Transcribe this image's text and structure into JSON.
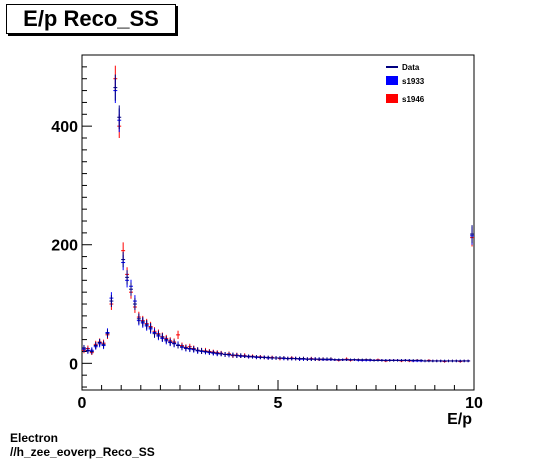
{
  "header": {
    "title": "E/p Reco_SS"
  },
  "footer": {
    "line1": "Electron",
    "line2": "//h_zee_eoverp_Reco_SS"
  },
  "colors": {
    "data": "#000080",
    "s1933": "#0000ff",
    "s1946": "#ff0000"
  },
  "chart_data": {
    "type": "scatter",
    "title": "E/p Reco_SS",
    "xlabel": "E/p",
    "ylabel": "",
    "xlim": [
      0,
      10
    ],
    "ylim": [
      -45,
      520
    ],
    "xticks": [
      0,
      5,
      10
    ],
    "yticks": [
      0,
      200,
      400
    ],
    "legend_position": "top-right",
    "legend": [
      "Data",
      "s1933",
      "s1946"
    ],
    "series": [
      {
        "name": "Data",
        "x": [
          0.05,
          0.15,
          0.25,
          0.35,
          0.45,
          0.55,
          0.65,
          0.75,
          0.85,
          0.95,
          1.05,
          1.15,
          1.25,
          1.35,
          1.45,
          1.55,
          1.65,
          1.75,
          1.85,
          1.95,
          2.05,
          2.15,
          2.25,
          2.35,
          2.45,
          2.55,
          2.65,
          2.75,
          2.85,
          2.95,
          3.05,
          3.15,
          3.25,
          3.35,
          3.45,
          3.55,
          3.65,
          3.75,
          3.85,
          3.95,
          4.05,
          4.15,
          4.25,
          4.35,
          4.45,
          4.55,
          4.65,
          4.75,
          4.85,
          4.95,
          5.05,
          5.15,
          5.25,
          5.35,
          5.45,
          5.55,
          5.65,
          5.75,
          5.85,
          5.95,
          6.05,
          6.15,
          6.25,
          6.35,
          6.45,
          6.55,
          6.65,
          6.75,
          6.85,
          6.95,
          7.05,
          7.15,
          7.25,
          7.35,
          7.45,
          7.55,
          7.65,
          7.75,
          7.85,
          7.95,
          8.05,
          8.15,
          8.25,
          8.35,
          8.45,
          8.55,
          8.65,
          8.75,
          8.85,
          8.95,
          9.05,
          9.15,
          9.25,
          9.35,
          9.45,
          9.55,
          9.65,
          9.75,
          9.85,
          9.95
        ],
        "y": [
          26,
          22,
          20,
          30,
          35,
          32,
          50,
          105,
          465,
          415,
          175,
          145,
          125,
          100,
          75,
          70,
          65,
          60,
          50,
          48,
          44,
          40,
          36,
          34,
          30,
          28,
          26,
          25,
          24,
          22,
          21,
          20,
          19,
          18,
          17,
          16,
          15,
          15,
          14,
          13,
          13,
          12,
          12,
          11,
          11,
          10,
          10,
          10,
          9,
          9,
          9,
          9,
          8,
          8,
          8,
          8,
          8,
          7,
          7,
          7,
          7,
          7,
          7,
          7,
          6,
          6,
          6,
          6,
          6,
          6,
          6,
          6,
          6,
          6,
          5,
          5,
          5,
          5,
          5,
          5,
          5,
          5,
          5,
          5,
          5,
          5,
          5,
          4,
          4,
          4,
          4,
          4,
          4,
          4,
          4,
          4,
          4,
          4,
          4,
          218
        ],
        "yerr": [
          5,
          5,
          5,
          6,
          6,
          6,
          7,
          10,
          22,
          20,
          13,
          12,
          11,
          10,
          9,
          8,
          8,
          8,
          7,
          7,
          7,
          6,
          6,
          6,
          5,
          5,
          5,
          5,
          5,
          5,
          5,
          4,
          4,
          4,
          4,
          4,
          4,
          4,
          4,
          4,
          4,
          3,
          3,
          3,
          3,
          3,
          3,
          3,
          3,
          3,
          3,
          3,
          3,
          3,
          3,
          3,
          3,
          3,
          3,
          3,
          3,
          3,
          3,
          3,
          2,
          2,
          2,
          2,
          2,
          2,
          2,
          2,
          2,
          2,
          2,
          2,
          2,
          2,
          2,
          2,
          2,
          2,
          2,
          2,
          2,
          2,
          2,
          2,
          2,
          2,
          2,
          2,
          2,
          2,
          2,
          2,
          2,
          2,
          2,
          15
        ]
      },
      {
        "name": "s1933",
        "x": [
          0.05,
          0.15,
          0.25,
          0.35,
          0.45,
          0.55,
          0.65,
          0.75,
          0.85,
          0.95,
          1.05,
          1.15,
          1.25,
          1.35,
          1.45,
          1.55,
          1.65,
          1.75,
          1.85,
          1.95,
          2.05,
          2.15,
          2.25,
          2.35,
          2.45,
          2.55,
          2.65,
          2.75,
          2.85,
          2.95,
          3.05,
          3.15,
          3.25,
          3.35,
          3.45,
          3.55,
          3.65,
          3.75,
          3.85,
          3.95,
          4.05,
          4.15,
          4.25,
          4.35,
          4.45,
          4.55,
          4.65,
          4.75,
          4.85,
          4.95,
          5.05,
          5.15,
          5.25,
          5.35,
          5.45,
          5.55,
          5.65,
          5.75,
          5.85,
          5.95,
          6.05,
          6.15,
          6.25,
          6.35,
          6.45,
          6.55,
          6.65,
          6.75,
          6.85,
          6.95,
          7.05,
          7.15,
          7.25,
          7.35,
          7.45,
          7.55,
          7.65,
          7.75,
          7.85,
          7.95,
          8.05,
          8.15,
          8.25,
          8.35,
          8.45,
          8.55,
          8.65,
          8.75,
          8.85,
          8.95,
          9.05,
          9.15,
          9.25,
          9.35,
          9.45,
          9.55,
          9.65,
          9.75,
          9.85,
          9.95
        ],
        "y": [
          24,
          21,
          22,
          28,
          33,
          30,
          52,
          110,
          460,
          410,
          170,
          140,
          130,
          105,
          72,
          68,
          63,
          58,
          52,
          46,
          42,
          38,
          35,
          33,
          31,
          27,
          25,
          24,
          23,
          21,
          20,
          19,
          18,
          17,
          16,
          16,
          15,
          14,
          14,
          13,
          12,
          12,
          11,
          11,
          10,
          10,
          10,
          9,
          9,
          9,
          9,
          8,
          8,
          8,
          8,
          7,
          7,
          7,
          7,
          7,
          7,
          6,
          6,
          6,
          6,
          6,
          6,
          6,
          6,
          6,
          5,
          5,
          5,
          5,
          5,
          5,
          5,
          5,
          5,
          5,
          5,
          5,
          5,
          5,
          4,
          4,
          4,
          4,
          4,
          4,
          4,
          4,
          4,
          4,
          4,
          4,
          4,
          4,
          4,
          215
        ],
        "yerr": [
          5,
          5,
          5,
          5,
          6,
          6,
          7,
          10,
          21,
          20,
          13,
          12,
          11,
          10,
          8,
          8,
          8,
          8,
          7,
          7,
          6,
          6,
          6,
          6,
          6,
          5,
          5,
          5,
          5,
          5,
          4,
          4,
          4,
          4,
          4,
          4,
          4,
          4,
          4,
          4,
          3,
          3,
          3,
          3,
          3,
          3,
          3,
          3,
          3,
          3,
          3,
          3,
          3,
          3,
          3,
          3,
          3,
          3,
          3,
          3,
          3,
          2,
          2,
          2,
          2,
          2,
          2,
          2,
          2,
          2,
          2,
          2,
          2,
          2,
          2,
          2,
          2,
          2,
          2,
          2,
          2,
          2,
          2,
          2,
          2,
          2,
          2,
          2,
          2,
          2,
          2,
          2,
          2,
          2,
          2,
          2,
          2,
          2,
          2,
          15
        ]
      },
      {
        "name": "s1946",
        "x": [
          0.05,
          0.15,
          0.25,
          0.35,
          0.45,
          0.55,
          0.65,
          0.75,
          0.85,
          0.95,
          1.05,
          1.15,
          1.25,
          1.35,
          1.45,
          1.55,
          1.65,
          1.75,
          1.85,
          1.95,
          2.05,
          2.15,
          2.25,
          2.35,
          2.45,
          2.55,
          2.65,
          2.75,
          2.85,
          2.95,
          3.05,
          3.15,
          3.25,
          3.35,
          3.45,
          3.55,
          3.65,
          3.75,
          3.85,
          3.95,
          4.05,
          4.15,
          4.25,
          4.35,
          4.45,
          4.55,
          4.65,
          4.75,
          4.85,
          4.95,
          5.05,
          5.15,
          5.25,
          5.35,
          5.45,
          5.55,
          5.65,
          5.75,
          5.85,
          5.95,
          6.05,
          6.15,
          6.25,
          6.35,
          6.45,
          6.55,
          6.65,
          6.75,
          6.85,
          6.95,
          7.05,
          7.15,
          7.25,
          7.35,
          7.45,
          7.55,
          7.65,
          7.75,
          7.85,
          7.95,
          8.05,
          8.15,
          8.25,
          8.35,
          8.45,
          8.55,
          8.65,
          8.75,
          8.85,
          8.95,
          9.05,
          9.15,
          9.25,
          9.35,
          9.45,
          9.55,
          9.65,
          9.75,
          9.85,
          9.95
        ],
        "y": [
          22,
          25,
          18,
          32,
          36,
          34,
          48,
          100,
          480,
          400,
          190,
          150,
          120,
          95,
          78,
          72,
          67,
          62,
          54,
          50,
          45,
          42,
          38,
          36,
          48,
          30,
          27,
          28,
          25,
          22,
          21,
          21,
          20,
          19,
          18,
          17,
          15,
          16,
          13,
          14,
          12,
          13,
          11,
          12,
          10,
          11,
          10,
          9,
          10,
          9,
          8,
          9,
          8,
          9,
          8,
          7,
          8,
          7,
          8,
          7,
          6,
          7,
          6,
          7,
          6,
          5,
          6,
          7,
          5,
          6,
          6,
          5,
          6,
          5,
          5,
          6,
          5,
          4,
          5,
          5,
          5,
          4,
          5,
          4,
          4,
          5,
          4,
          4,
          5,
          4,
          4,
          4,
          3,
          4,
          4,
          4,
          3,
          4,
          4,
          212
        ],
        "yerr": [
          5,
          5,
          4,
          6,
          6,
          6,
          7,
          10,
          22,
          20,
          14,
          12,
          11,
          10,
          9,
          8,
          8,
          8,
          7,
          7,
          7,
          6,
          6,
          6,
          7,
          5,
          5,
          5,
          5,
          5,
          5,
          5,
          4,
          4,
          4,
          4,
          4,
          4,
          4,
          4,
          3,
          4,
          3,
          3,
          3,
          3,
          3,
          3,
          3,
          3,
          3,
          3,
          3,
          3,
          3,
          3,
          3,
          3,
          3,
          3,
          2,
          3,
          2,
          3,
          2,
          2,
          2,
          3,
          2,
          2,
          2,
          2,
          2,
          2,
          2,
          2,
          2,
          2,
          2,
          2,
          2,
          2,
          2,
          2,
          2,
          2,
          2,
          2,
          2,
          2,
          2,
          2,
          2,
          2,
          2,
          2,
          2,
          2,
          2,
          15
        ]
      }
    ]
  }
}
